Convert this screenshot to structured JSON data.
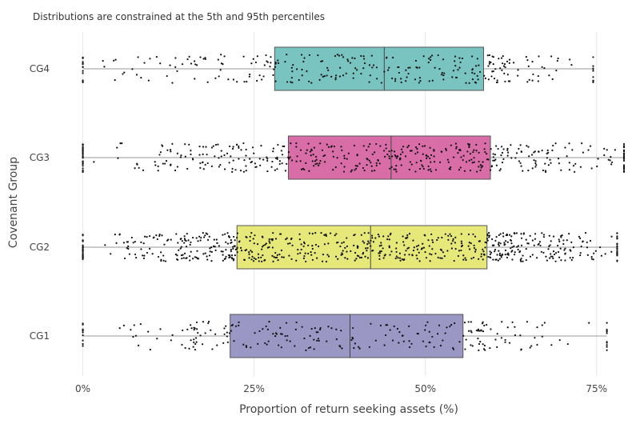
{
  "chart_data": {
    "type": "box",
    "subtitle": "Distributions are constrained at the 5th and 95th percentiles",
    "xlabel": "Proportion of return seeking assets (%)",
    "ylabel": "Covenant Group",
    "xlim": [
      -0.01,
      0.79
    ],
    "x_ticks": [
      {
        "value": 0.0,
        "label": "0%"
      },
      {
        "value": 0.25,
        "label": "25%"
      },
      {
        "value": 0.5,
        "label": "50%"
      },
      {
        "value": 0.75,
        "label": "75%"
      }
    ],
    "grid": true,
    "series": [
      {
        "name": "CG1",
        "min": 0.0,
        "q1": 0.215,
        "median": 0.39,
        "q3": 0.555,
        "max": 0.765,
        "point_count": 250,
        "color": "#9b97c4"
      },
      {
        "name": "CG2",
        "min": 0.0,
        "q1": 0.225,
        "median": 0.42,
        "q3": 0.59,
        "max": 0.78,
        "point_count": 700,
        "color": "#e6e97a"
      },
      {
        "name": "CG3",
        "min": 0.0,
        "q1": 0.3,
        "median": 0.45,
        "q3": 0.595,
        "max": 0.79,
        "point_count": 500,
        "color": "#d96da8"
      },
      {
        "name": "CG4",
        "min": 0.0,
        "q1": 0.28,
        "median": 0.44,
        "q3": 0.585,
        "max": 0.745,
        "point_count": 300,
        "color": "#79c4c0"
      }
    ]
  }
}
